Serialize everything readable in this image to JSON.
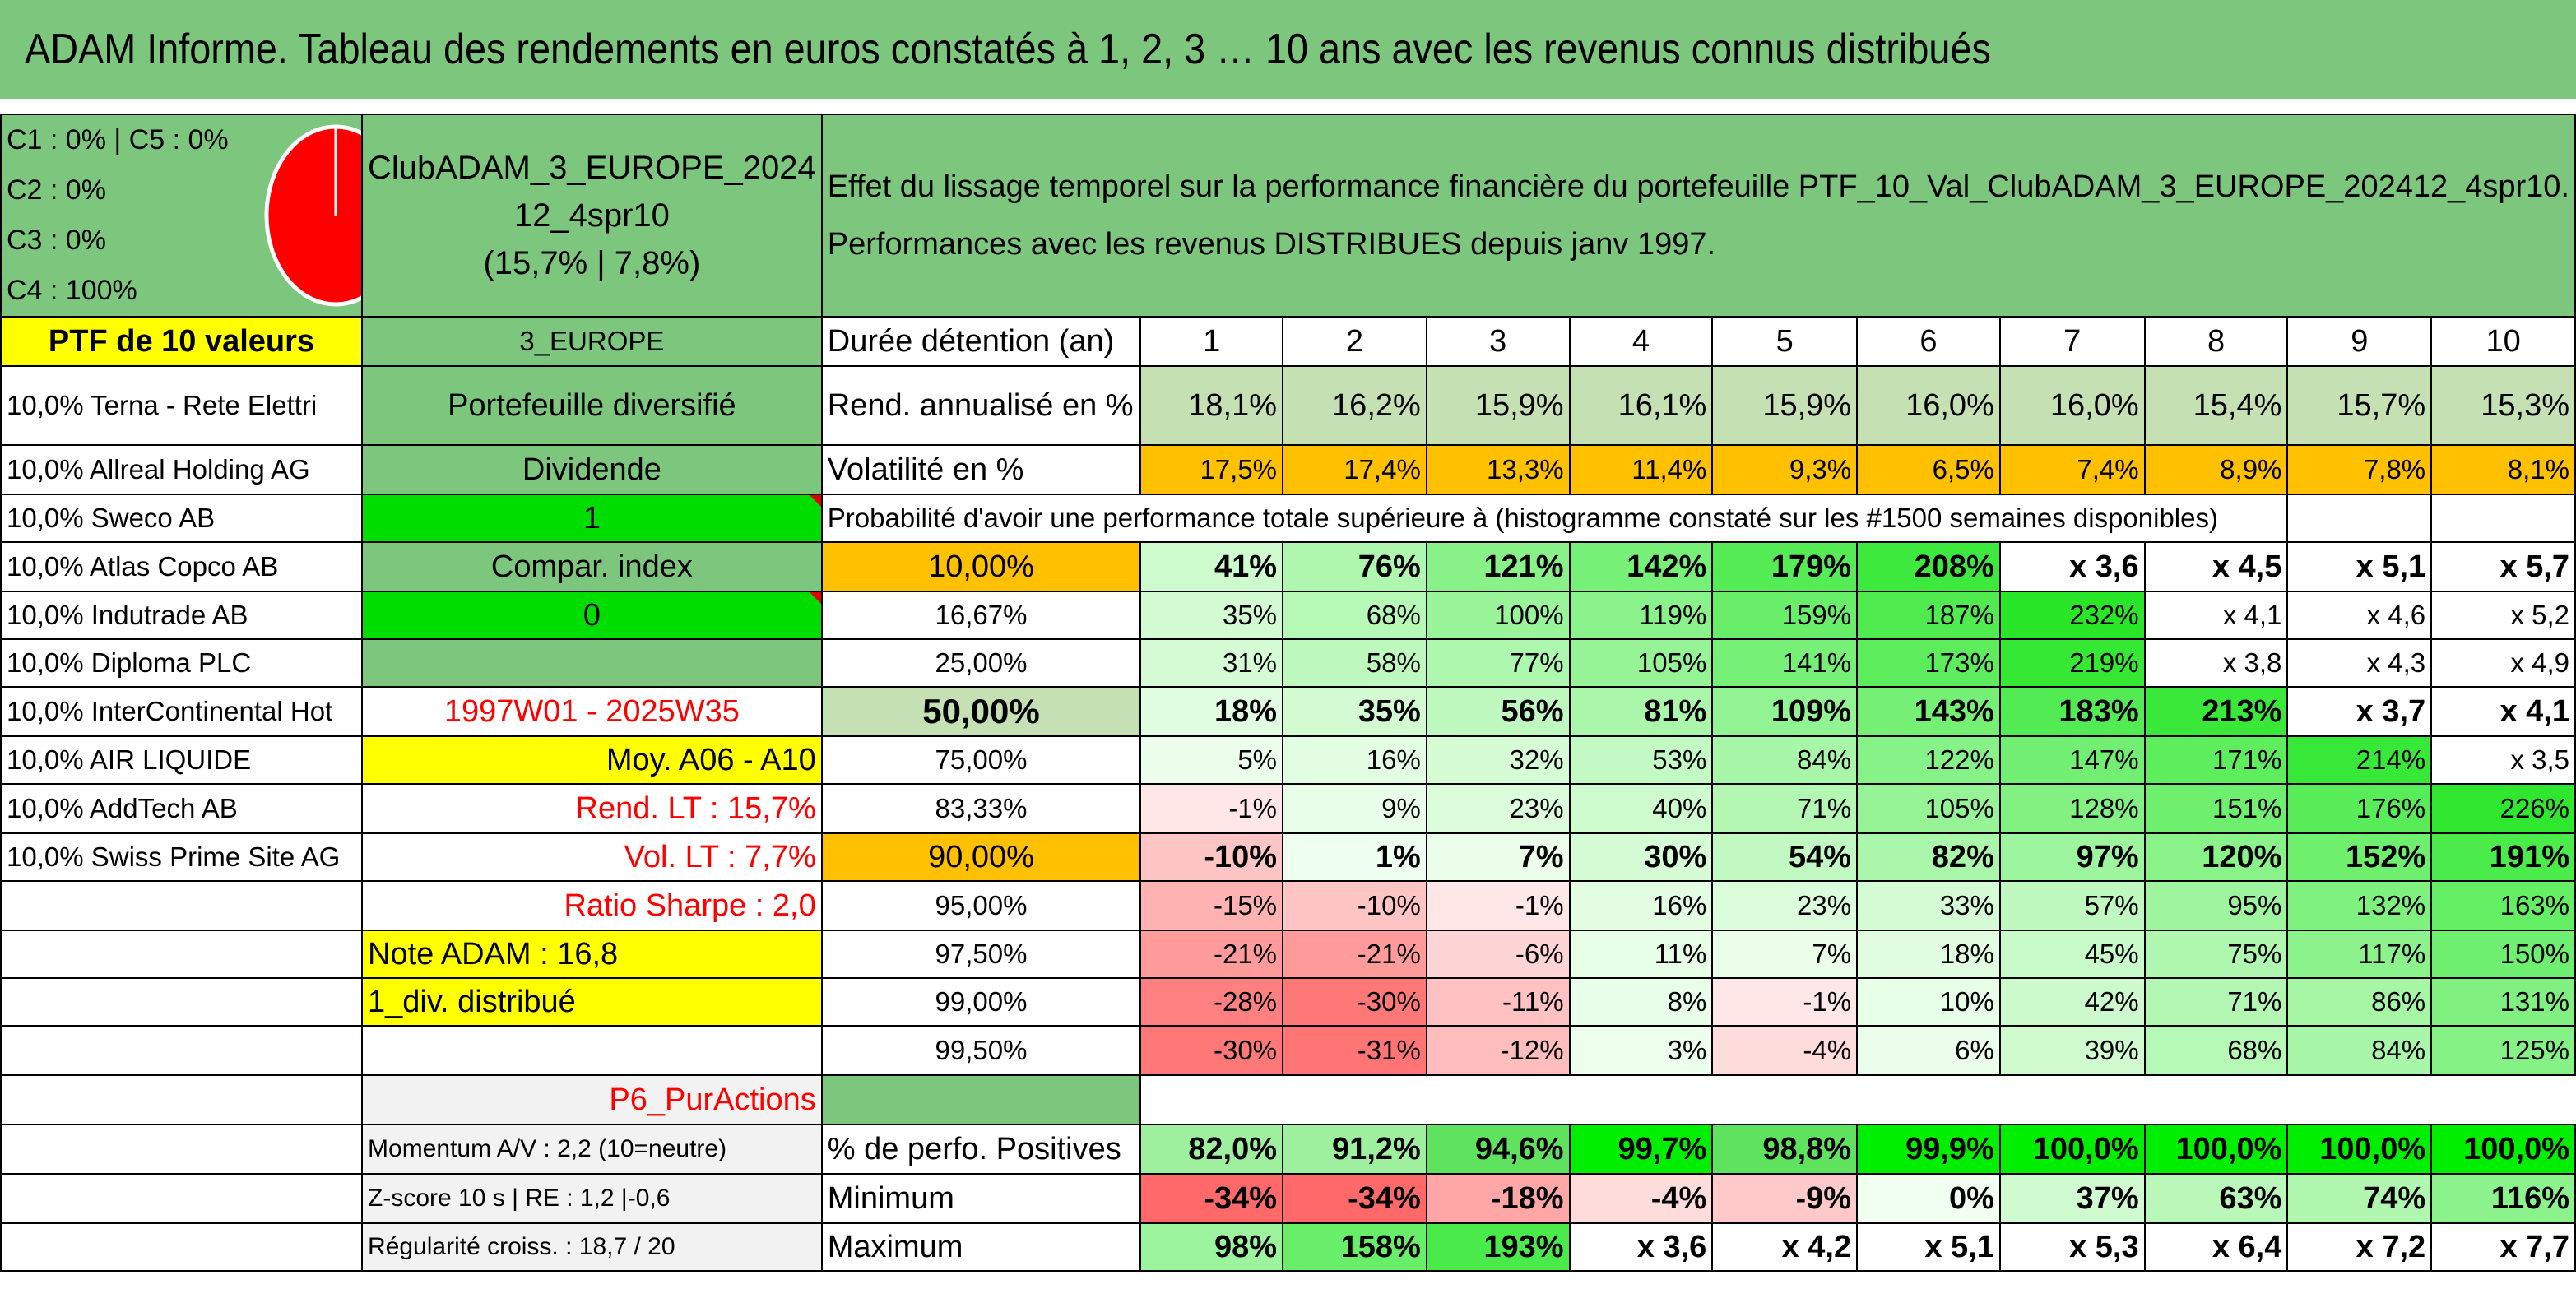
{
  "title": "ADAM Informe. Tableau des rendements en euros constatés à 1, 2, 3 … 10 ans avec les revenus connus distribués",
  "pie": {
    "labels": [
      "C1 : 0% | C5 : 0%",
      "C2 : 0%",
      "C3 : 0%",
      "C4 : 100%"
    ],
    "color": "#ff0000"
  },
  "club": {
    "name_line1": "ClubADAM_3_EUROPE_2024",
    "name_line2": "12_4spr10",
    "name_line3": "(15,7% | 7,8%)"
  },
  "description": {
    "line1": "Effet du lissage temporel sur la performance financière du portefeuille PTF_10_Val_ClubADAM_3_EUROPE_202412_4spr10.",
    "line2": "Performances avec les revenus DISTRIBUES depuis janv 1997."
  },
  "portfolio_header": "PTF de 10 valeurs",
  "holdings": [
    "10,0% Terna - Rete Elettri",
    "10,0% Allreal Holding AG",
    "10,0% Sweco AB",
    "10,0% Atlas Copco AB",
    "10,0% Indutrade AB",
    "10,0% Diploma PLC",
    "10,0% InterContinental Hot",
    "10,0% AIR LIQUIDE",
    "10,0% AddTech AB",
    "10,0% Swiss Prime Site AG"
  ],
  "meta": {
    "region": "3_EUROPE",
    "type": "Portefeuille diversifié",
    "income": "Dividende",
    "income_value": "1",
    "compar": "Compar. index",
    "compar_value": "0",
    "period": "1997W01 - 2025W35",
    "moy": "Moy. A06 - A10",
    "rend_lt": "Rend. LT : 15,7%",
    "vol_lt": "Vol. LT : 7,7%",
    "sharpe": "Ratio Sharpe : 2,0",
    "note": "Note ADAM : 16,8",
    "div": "1_div. distribué",
    "model": "P6_PurActions",
    "momentum": "Momentum A/V : 2,2 (10=neutre)",
    "zscore": "Z-score 10 s | RE : 1,2 |-0,6",
    "regularite": "Régularité croiss. : 18,7 / 20"
  },
  "table": {
    "duration_label": "Durée détention (an)",
    "years": [
      "1",
      "2",
      "3",
      "4",
      "5",
      "6",
      "7",
      "8",
      "9",
      "10"
    ],
    "rend_label": "Rend. annualisé en %",
    "rend": [
      "18,1%",
      "16,2%",
      "15,9%",
      "16,1%",
      "15,9%",
      "16,0%",
      "16,0%",
      "15,4%",
      "15,7%",
      "15,3%"
    ],
    "vol_label": "Volatilité en %",
    "vol": [
      "17,5%",
      "17,4%",
      "13,3%",
      "11,4%",
      "9,3%",
      "6,5%",
      "7,4%",
      "8,9%",
      "7,8%",
      "8,1%"
    ],
    "prob_label": "Probabilité d'avoir une performance totale supérieure à (histogramme constaté sur les #1500 semaines disponibles)",
    "prob_rows": [
      {
        "p": "10,00%",
        "v": [
          "41%",
          "76%",
          "121%",
          "142%",
          "179%",
          "208%",
          "x 3,6",
          "x 4,5",
          "x 5,1",
          "x 5,7"
        ]
      },
      {
        "p": "16,67%",
        "v": [
          "35%",
          "68%",
          "100%",
          "119%",
          "159%",
          "187%",
          "232%",
          "x 4,1",
          "x 4,6",
          "x 5,2"
        ]
      },
      {
        "p": "25,00%",
        "v": [
          "31%",
          "58%",
          "77%",
          "105%",
          "141%",
          "173%",
          "219%",
          "x 3,8",
          "x 4,3",
          "x 4,9"
        ]
      },
      {
        "p": "50,00%",
        "v": [
          "18%",
          "35%",
          "56%",
          "81%",
          "109%",
          "143%",
          "183%",
          "213%",
          "x 3,7",
          "x 4,1"
        ]
      },
      {
        "p": "75,00%",
        "v": [
          "5%",
          "16%",
          "32%",
          "53%",
          "84%",
          "122%",
          "147%",
          "171%",
          "214%",
          "x 3,5"
        ]
      },
      {
        "p": "83,33%",
        "v": [
          "-1%",
          "9%",
          "23%",
          "40%",
          "71%",
          "105%",
          "128%",
          "151%",
          "176%",
          "226%"
        ]
      },
      {
        "p": "90,00%",
        "v": [
          "-10%",
          "1%",
          "7%",
          "30%",
          "54%",
          "82%",
          "97%",
          "120%",
          "152%",
          "191%"
        ]
      },
      {
        "p": "95,00%",
        "v": [
          "-15%",
          "-10%",
          "-1%",
          "16%",
          "23%",
          "33%",
          "57%",
          "95%",
          "132%",
          "163%"
        ]
      },
      {
        "p": "97,50%",
        "v": [
          "-21%",
          "-21%",
          "-6%",
          "11%",
          "7%",
          "18%",
          "45%",
          "75%",
          "117%",
          "150%"
        ]
      },
      {
        "p": "99,00%",
        "v": [
          "-28%",
          "-30%",
          "-11%",
          "8%",
          "-1%",
          "10%",
          "42%",
          "71%",
          "86%",
          "131%"
        ]
      },
      {
        "p": "99,50%",
        "v": [
          "-30%",
          "-31%",
          "-12%",
          "3%",
          "-4%",
          "6%",
          "39%",
          "68%",
          "84%",
          "125%"
        ]
      }
    ],
    "pos_label": "% de perfo. Positives",
    "pos": [
      "82,0%",
      "91,2%",
      "94,6%",
      "99,7%",
      "98,8%",
      "99,9%",
      "100,0%",
      "100,0%",
      "100,0%",
      "100,0%"
    ],
    "min_label": "Minimum",
    "min": [
      "-34%",
      "-34%",
      "-18%",
      "-4%",
      "-9%",
      "0%",
      "37%",
      "63%",
      "74%",
      "116%"
    ],
    "max_label": "Maximum",
    "max": [
      "98%",
      "158%",
      "193%",
      "x 3,6",
      "x 4,2",
      "x 5,1",
      "x 5,3",
      "x 6,4",
      "x 7,2",
      "x 7,7"
    ]
  },
  "colors": {
    "header_green": "#7dc67d",
    "light_green": "#c5e0b3",
    "highlight_yellow": "#ffff00",
    "orange": "#ffc000",
    "bright_green": "#00dd00",
    "negative_red": "#f8696b"
  }
}
